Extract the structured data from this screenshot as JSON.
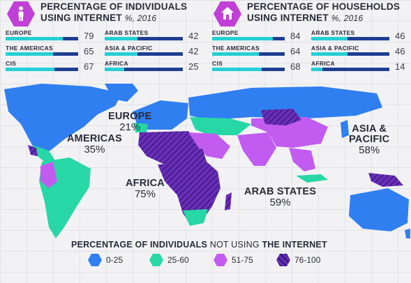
{
  "colors": {
    "bar_fill": "#24cfd4",
    "bar_track": "#1f3e92",
    "icon_bg": "#c03fd6",
    "bin_0_25": "#2f7ff0",
    "bin_25_60": "#28d7a6",
    "bin_51_75": "#c25cf0",
    "bin_76_100": "#6a2eb8"
  },
  "individuals_panel": {
    "icon": "person-icon",
    "title_line1": "PERCENTAGE OF INDIVIDUALS",
    "title_line2": "USING INTERNET",
    "unit": "%, 2016"
  },
  "households_panel": {
    "icon": "house-icon",
    "title_line1": "PERCENTAGE OF HOUSEHOLDS",
    "title_line2": "USING INTERNET",
    "unit": "%, 2016"
  },
  "regions_left": [
    "EUROPE",
    "THE AMERICAS",
    "CIS"
  ],
  "regions_right": [
    "ARAB STATES",
    "ASIA & PACIFIC",
    "AFRICA"
  ],
  "chart_data": [
    {
      "type": "bar",
      "title": "PERCENTAGE OF INDIVIDUALS USING INTERNET %, 2016",
      "categories": [
        "EUROPE",
        "THE AMERICAS",
        "CIS",
        "ARAB STATES",
        "ASIA & PACIFIC",
        "AFRICA"
      ],
      "values": [
        79,
        65,
        67,
        42,
        42,
        25
      ],
      "ylim": [
        0,
        100
      ]
    },
    {
      "type": "bar",
      "title": "PERCENTAGE OF HOUSEHOLDS USING INTERNET %, 2016",
      "categories": [
        "EUROPE",
        "THE AMERICAS",
        "CIS",
        "ARAB STATES",
        "ASIA & PACIFIC",
        "AFRICA"
      ],
      "values": [
        84,
        64,
        68,
        46,
        46,
        14
      ],
      "ylim": [
        0,
        100
      ]
    },
    {
      "type": "map",
      "title": "PERCENTAGE OF INDIVIDUALS NOT USING THE INTERNET",
      "annotations": [
        {
          "name": "EUROPE",
          "value": "21%"
        },
        {
          "name": "AMERICAS",
          "value": "35%"
        },
        {
          "name": "AFRICA",
          "value": "75%"
        },
        {
          "name": "ARAB STATES",
          "value": "59%"
        },
        {
          "name": "ASIA &",
          "name2": "PACIFIC",
          "value": "58%"
        }
      ],
      "legend": [
        {
          "label": "0-25",
          "color": "#2f7ff0",
          "hatched": false
        },
        {
          "label": "25-60",
          "color": "#28d7a6",
          "hatched": false
        },
        {
          "label": "51-75",
          "color": "#c25cf0",
          "hatched": false
        },
        {
          "label": "76-100",
          "color": "#6a2eb8",
          "hatched": true
        }
      ]
    }
  ],
  "legend_title": {
    "part1": "PERCENTAGE OF INDIVIDUALS",
    "part2": " NOT USING ",
    "part3": "THE INTERNET"
  }
}
